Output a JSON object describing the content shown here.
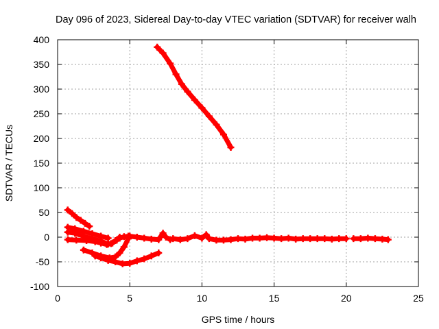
{
  "chart_data": {
    "type": "scatter",
    "title": "Day 096 of 2023, Sidereal Day-to-day VTEC variation (SDTVAR) for receiver walh",
    "xlabel": "GPS time / hours",
    "ylabel": "SDTVAR / TECUs",
    "xlim": [
      0,
      25
    ],
    "ylim": [
      -100,
      400
    ],
    "xticks": [
      0,
      5,
      10,
      15,
      20,
      25
    ],
    "yticks": [
      -100,
      -50,
      0,
      50,
      100,
      150,
      200,
      250,
      300,
      350,
      400
    ],
    "xtick_labels": [
      "0",
      "5",
      "10",
      "15",
      "20",
      "25"
    ],
    "ytick_labels": [
      "-100",
      "-50",
      "0",
      "50",
      "100",
      "150",
      "200",
      "250",
      "300",
      "350",
      "400"
    ],
    "grid": true,
    "marker": "plus",
    "color": "#ff0000",
    "series": [
      {
        "name": "track-1",
        "x": [
          6.9,
          7.3,
          7.8,
          8.2,
          8.6,
          9.0,
          9.5,
          10.0,
          10.5,
          11.0,
          11.5,
          12.0
        ],
        "y": [
          385,
          373,
          352,
          330,
          310,
          295,
          278,
          262,
          245,
          228,
          208,
          182
        ]
      },
      {
        "name": "track-2",
        "x": [
          0.7,
          1.0,
          1.3,
          1.6,
          1.9,
          2.2
        ],
        "y": [
          55,
          48,
          40,
          34,
          28,
          22
        ]
      },
      {
        "name": "track-3",
        "x": [
          0.7,
          1.2,
          1.8,
          2.4,
          3.0,
          3.5
        ],
        "y": [
          20,
          17,
          12,
          7,
          2,
          -2
        ]
      },
      {
        "name": "track-4",
        "x": [
          0.7,
          1.2,
          1.8,
          2.4,
          3.0,
          3.5,
          3.8,
          4.1,
          4.3
        ],
        "y": [
          10,
          8,
          2,
          -3,
          -8,
          -14,
          -12,
          -6,
          0
        ]
      },
      {
        "name": "track-5",
        "x": [
          0.7,
          1.3,
          2.0,
          2.6,
          3.0,
          3.4,
          3.7,
          4.0,
          4.3,
          4.6,
          4.9
        ],
        "y": [
          -5,
          -6,
          -7,
          -9,
          -12,
          -15,
          -13,
          -7,
          -2,
          1,
          2
        ]
      },
      {
        "name": "track-6",
        "x": [
          1.8,
          2.4,
          3.0,
          3.6,
          4.0,
          4.3,
          4.6,
          4.9
        ],
        "y": [
          -26,
          -32,
          -38,
          -42,
          -40,
          -32,
          -20,
          -3
        ]
      },
      {
        "name": "track-7",
        "x": [
          2.6,
          3.0,
          3.5,
          4.0,
          4.5,
          5.0,
          5.5,
          6.0,
          6.5,
          7.0
        ],
        "y": [
          -38,
          -42,
          -47,
          -50,
          -54,
          -53,
          -48,
          -44,
          -38,
          -32
        ]
      },
      {
        "name": "track-8",
        "x": [
          5.0,
          5.5,
          6.0,
          6.5,
          7.0,
          7.3,
          7.5,
          7.8,
          8.0,
          8.5,
          9.0,
          9.5,
          10.0,
          10.3,
          10.5,
          11.0,
          11.5,
          12.0,
          12.5,
          13.0,
          13.5,
          14.0,
          14.5,
          15.0,
          15.5,
          16.0,
          16.5,
          17.0,
          17.5,
          18.0,
          18.5,
          19.0,
          19.5,
          20.0
        ],
        "y": [
          2,
          0,
          -2,
          -4,
          -5,
          8,
          0,
          -5,
          -3,
          -5,
          -3,
          3,
          -2,
          5,
          -3,
          -6,
          -6,
          -5,
          -3,
          -4,
          -2,
          -2,
          -1,
          -2,
          -3,
          -2,
          -4,
          -3,
          -3,
          -3,
          -3,
          -4,
          -3,
          -3
        ]
      },
      {
        "name": "track-9",
        "x": [
          20.5,
          21.0,
          21.5,
          22.0,
          22.5,
          22.9
        ],
        "y": [
          -3,
          -3,
          -2,
          -3,
          -4,
          -5
        ]
      }
    ]
  }
}
